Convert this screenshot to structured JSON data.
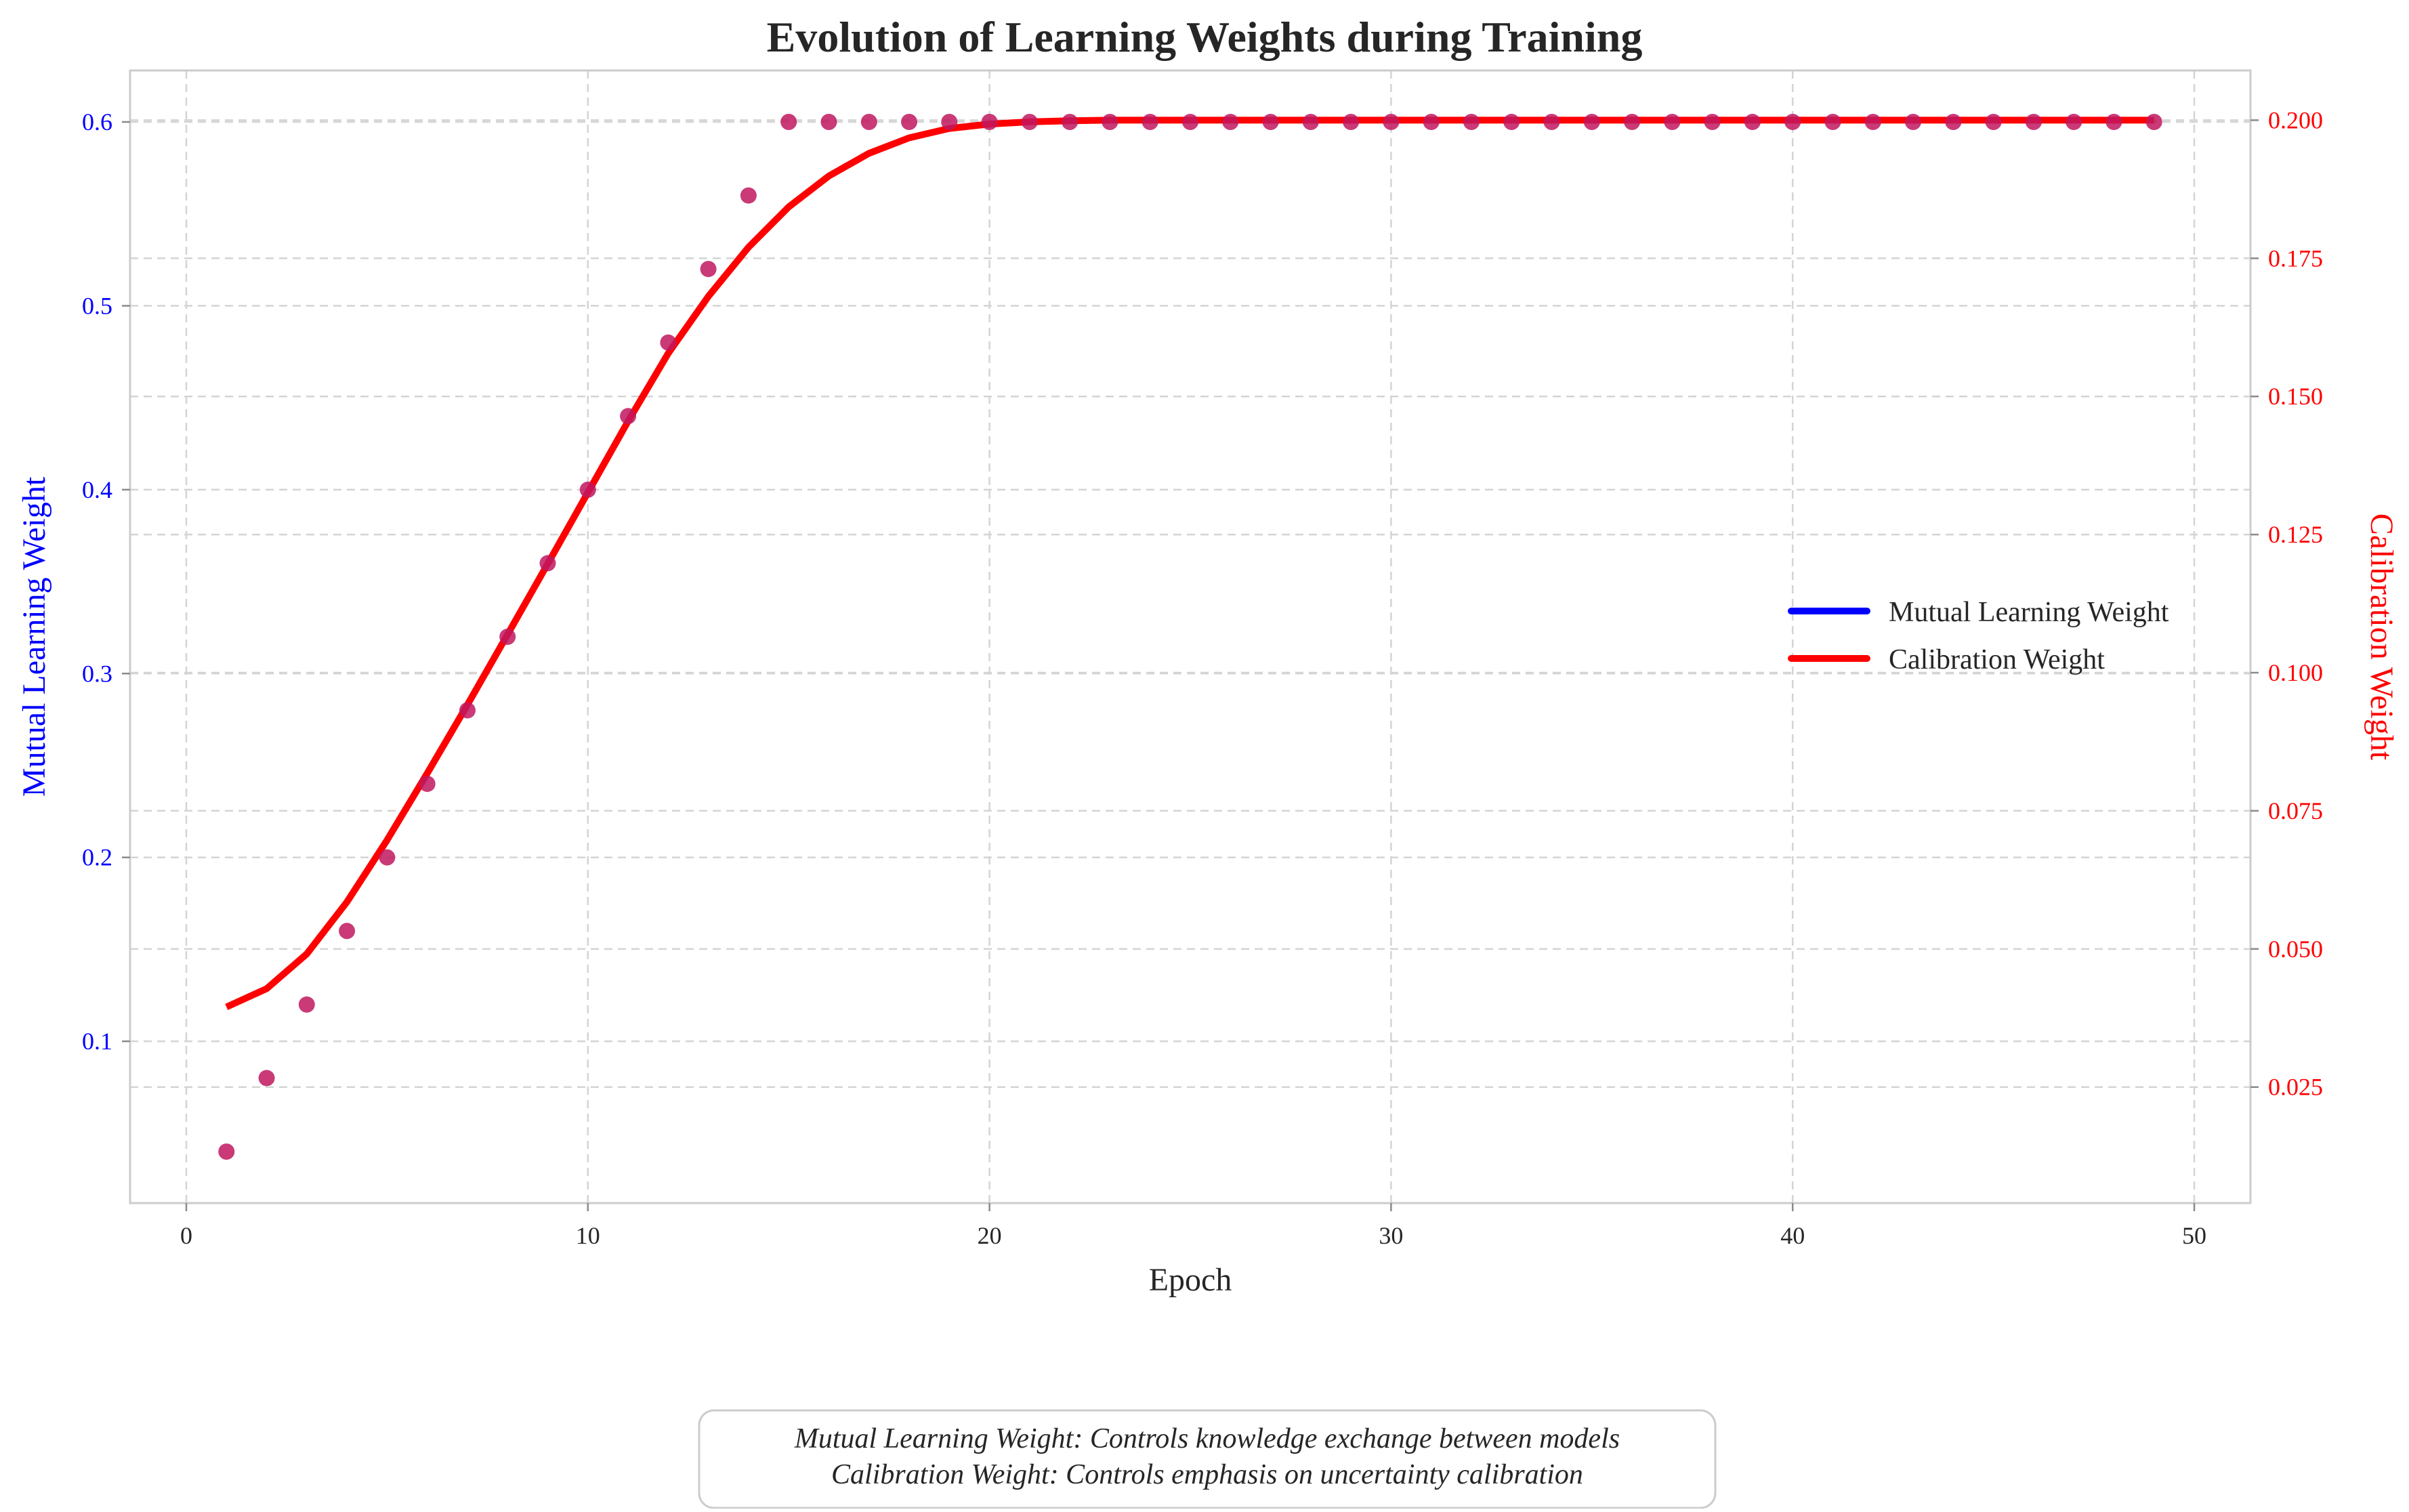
{
  "chart_data": {
    "type": "line",
    "title": "Evolution of Learning Weights during Training",
    "xlabel": "Epoch",
    "ylabel_left": "Mutual Learning Weight",
    "ylabel_right": "Calibration Weight",
    "xlim": [
      -1.4,
      51.4
    ],
    "ylim_left": [
      0.012,
      0.628
    ],
    "ylim_right": [
      0.004,
      0.209
    ],
    "xticks": [
      0,
      10,
      20,
      30,
      40,
      50
    ],
    "yticks_left": [
      0.1,
      0.2,
      0.3,
      0.4,
      0.5,
      0.6
    ],
    "yticks_right": [
      0.025,
      0.05,
      0.075,
      0.1,
      0.125,
      0.15,
      0.175,
      0.2
    ],
    "xtick_labels": [
      "0",
      "10",
      "20",
      "30",
      "40",
      "50"
    ],
    "ytick_labels_left": [
      "0.1",
      "0.2",
      "0.3",
      "0.4",
      "0.5",
      "0.6"
    ],
    "ytick_labels_right": [
      "0.025",
      "0.050",
      "0.075",
      "0.100",
      "0.125",
      "0.150",
      "0.175",
      "0.200"
    ],
    "grid": true,
    "legend_position": "center-right",
    "series": [
      {
        "name": "Mutual Learning Weight",
        "axis": "left",
        "style": "points",
        "color": "#0000ff",
        "marker_color": "#c0185f",
        "x": [
          1,
          2,
          3,
          4,
          5,
          6,
          7,
          8,
          9,
          10,
          11,
          12,
          13,
          14,
          15,
          16,
          17,
          18,
          19,
          20,
          21,
          22,
          23,
          24,
          25,
          26,
          27,
          28,
          29,
          30,
          31,
          32,
          33,
          34,
          35,
          36,
          37,
          38,
          39,
          40,
          41,
          42,
          43,
          44,
          45,
          46,
          47,
          48,
          49
        ],
        "values": [
          0.04,
          0.08,
          0.12,
          0.16,
          0.2,
          0.24,
          0.28,
          0.32,
          0.36,
          0.4,
          0.44,
          0.48,
          0.52,
          0.56,
          0.6,
          0.6,
          0.6,
          0.6,
          0.6,
          0.6,
          0.6,
          0.6,
          0.6,
          0.6,
          0.6,
          0.6,
          0.6,
          0.6,
          0.6,
          0.6,
          0.6,
          0.6,
          0.6,
          0.6,
          0.6,
          0.6,
          0.6,
          0.6,
          0.6,
          0.6,
          0.6,
          0.6,
          0.6,
          0.6,
          0.6,
          0.6,
          0.6,
          0.6,
          0.6
        ]
      },
      {
        "name": "Calibration Weight",
        "axis": "right",
        "style": "line",
        "color": "#ff0000",
        "x": [
          1,
          2,
          3,
          4,
          5,
          6,
          7,
          8,
          9,
          10,
          11,
          12,
          13,
          14,
          15,
          16,
          17,
          18,
          19,
          20,
          21,
          22,
          23,
          24,
          25,
          26,
          27,
          28,
          29,
          30,
          31,
          32,
          33,
          34,
          35,
          36,
          37,
          38,
          39,
          40,
          41,
          42,
          43,
          44,
          45,
          46,
          47,
          48,
          49
        ],
        "values": [
          0.0395,
          0.0428,
          0.0491,
          0.0585,
          0.0697,
          0.0818,
          0.0942,
          0.1069,
          0.1197,
          0.1326,
          0.1455,
          0.1578,
          0.1681,
          0.177,
          0.1843,
          0.1899,
          0.194,
          0.1968,
          0.1985,
          0.1993,
          0.1997,
          0.1999,
          0.2,
          0.2,
          0.2,
          0.2,
          0.2,
          0.2,
          0.2,
          0.2,
          0.2,
          0.2,
          0.2,
          0.2,
          0.2,
          0.2,
          0.2,
          0.2,
          0.2,
          0.2,
          0.2,
          0.2,
          0.2,
          0.2,
          0.2,
          0.2,
          0.2,
          0.2,
          0.2
        ]
      }
    ]
  },
  "legend": {
    "items": [
      {
        "label": "Mutual Learning Weight",
        "color": "#0000ff"
      },
      {
        "label": "Calibration Weight",
        "color": "#ff0000"
      }
    ]
  },
  "note": {
    "line1": "Mutual Learning Weight: Controls knowledge exchange between models",
    "line2": "Calibration Weight: Controls emphasis on uncertainty calibration"
  }
}
